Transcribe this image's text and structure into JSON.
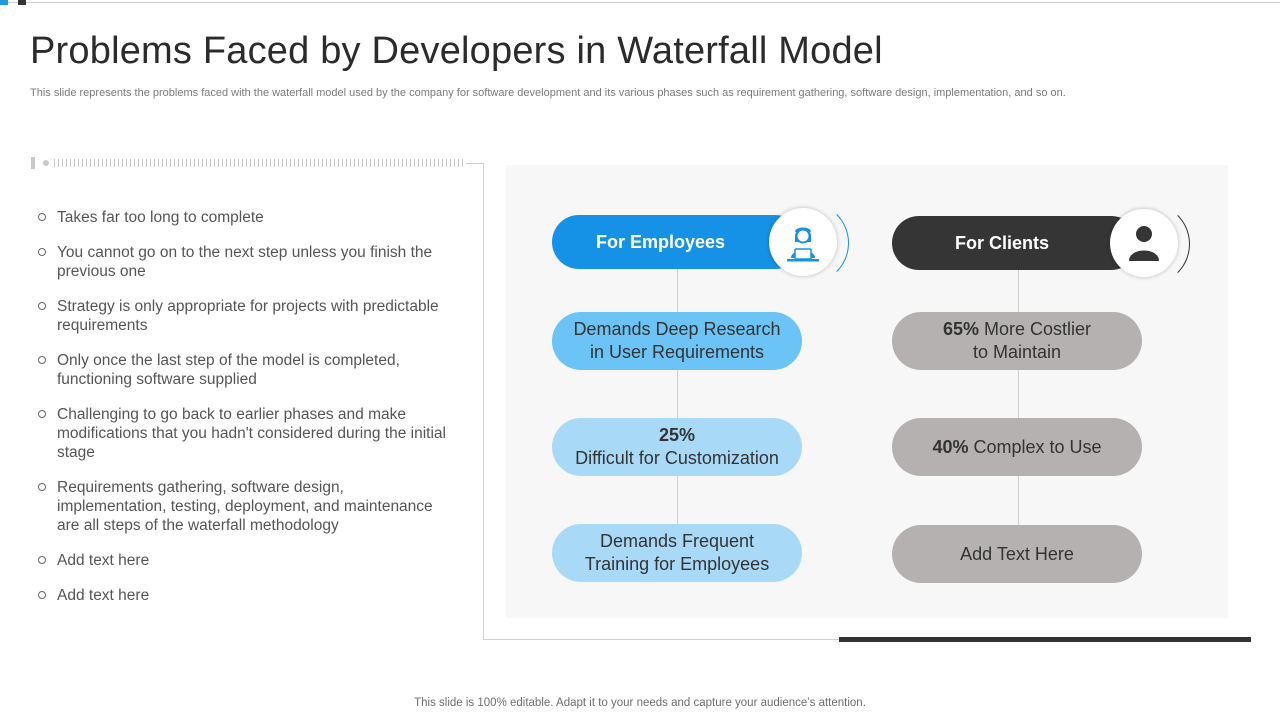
{
  "slide": {
    "title": "Problems Faced by Developers in Waterfall Model",
    "subtitle": "This slide represents the problems faced with the waterfall model used by the company for software development and its various phases such as requirement gathering, software design, implementation, and so on.",
    "footer": "This slide is 100% editable. Adapt it to your needs and capture your audience’s attention."
  },
  "bullets": [
    "Takes far too long to complete",
    "You cannot go on to the next step unless you finish the previous one",
    "Strategy is only appropriate for projects with predictable requirements",
    "Only once the last step of the model is completed, functioning software supplied",
    "Challenging to go back to earlier phases and make modifications that you hadn't considered during the initial stage",
    "Requirements gathering, software design, implementation, testing, deployment, and maintenance are all steps of the waterfall methodology",
    "Add text here",
    "Add text here"
  ],
  "employees": {
    "header": "For Employees",
    "icon": "employee-laptop-icon",
    "item1": "Demands Deep Research in User Requirements",
    "item2_value": "25%",
    "item2_text": "Difficult for Customization",
    "item3": "Demands Frequent Training for Employees"
  },
  "clients": {
    "header": "For Clients",
    "icon": "user-icon",
    "item1_value": "65%",
    "item1_text_a": " More Costlier",
    "item1_text_b": "to Maintain",
    "item2_value": "40%",
    "item2_text": " Complex to Use",
    "item3": "Add Text Here"
  },
  "colors": {
    "accent_blue": "#1592e6",
    "dark": "#353535",
    "light_blue": "#a8daf8",
    "mid_blue": "#6bc4f5",
    "gray": "#b5b1b1"
  }
}
